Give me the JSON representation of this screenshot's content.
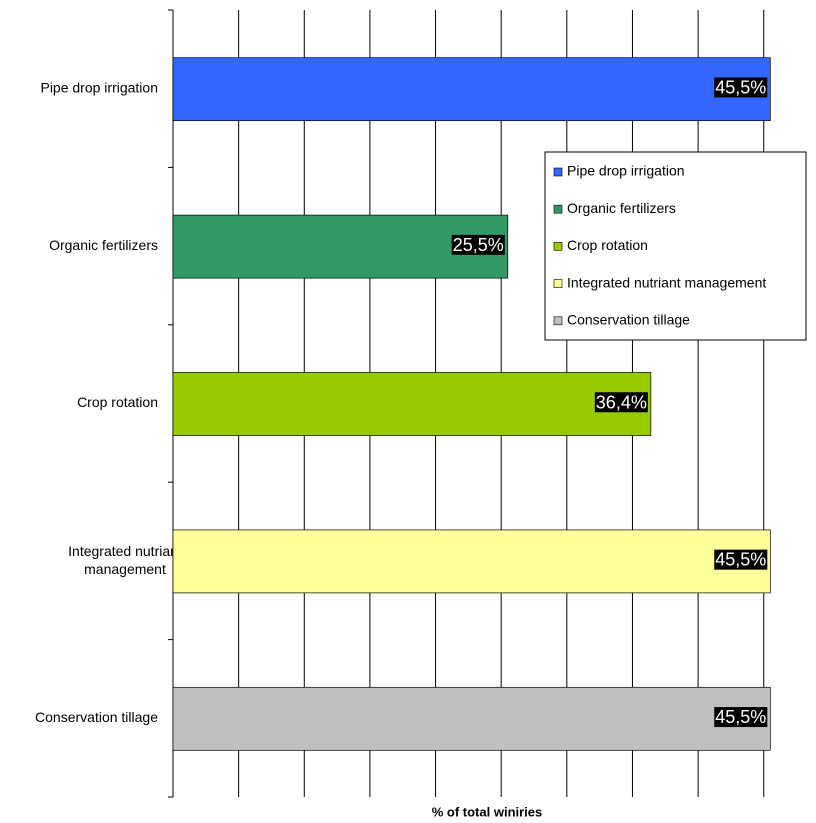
{
  "chart_data": {
    "type": "barh",
    "xlabel": "% of total winiries",
    "categories": [
      "Pipe drop irrigation",
      "Organic fertilizers",
      "Crop rotation",
      "Integrated nutriant management",
      "Conservation tillage"
    ],
    "values": [
      45.5,
      25.5,
      36.4,
      45.5,
      45.5
    ],
    "value_labels": [
      "45,5%",
      "25,5%",
      "36,4%",
      "45,5%",
      "45,5%"
    ],
    "colors": [
      "#3366ff",
      "#339966",
      "#99cc00",
      "#ffff99",
      "#c0c0c0"
    ],
    "xlim": [
      0,
      47
    ],
    "xticks": [
      0,
      5,
      10,
      15,
      20,
      25,
      30,
      35,
      40,
      45
    ],
    "grid": true,
    "legend": "right"
  }
}
